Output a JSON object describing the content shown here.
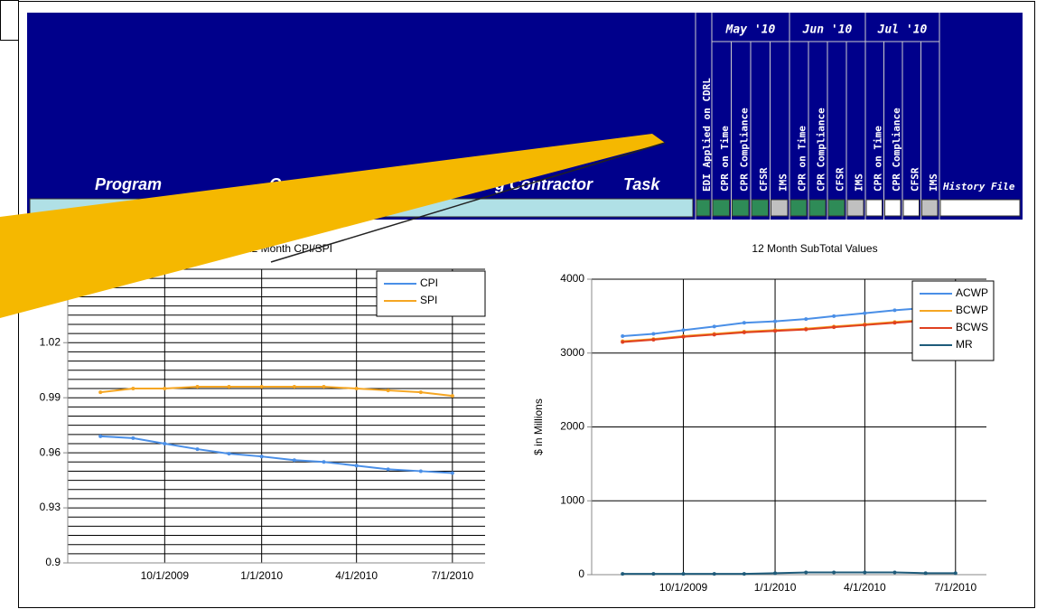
{
  "header": {
    "columns": [
      "Program",
      "Cont",
      "g Contractor",
      "Task"
    ],
    "edi": "EDI Applied on CDRL",
    "edi_color": "#2e8b57",
    "months": [
      {
        "label": "May '10",
        "items": [
          "CPR on Time",
          "CPR Compliance",
          "CFSR",
          "IMS"
        ],
        "colors": [
          "#2e8b57",
          "#2e8b57",
          "#2e8b57",
          "#c0c0c0"
        ]
      },
      {
        "label": "Jun '10",
        "items": [
          "CPR on Time",
          "CPR Compliance",
          "CFSR",
          "IMS"
        ],
        "colors": [
          "#2e8b57",
          "#2e8b57",
          "#2e8b57",
          "#c0c0c0"
        ]
      },
      {
        "label": "Jul '10",
        "items": [
          "CPR on Time",
          "CPR Compliance",
          "CFSR",
          "IMS"
        ],
        "colors": [
          "#ffffff",
          "#ffffff",
          "#ffffff",
          "#c0c0c0"
        ]
      }
    ],
    "history": "History File"
  },
  "chart_data": [
    {
      "type": "line",
      "title": "12 Month CPI/SPI",
      "x": [
        "8/1/2009",
        "9/1/2009",
        "10/1/2009",
        "11/1/2009",
        "12/1/2009",
        "1/1/2010",
        "2/1/2010",
        "3/1/2010",
        "4/1/2010",
        "5/1/2010",
        "6/1/2010",
        "7/1/2010"
      ],
      "xlim": [
        "7/1/2009",
        "8/1/2010"
      ],
      "xticks": [
        "10/1/2009",
        "1/1/2010",
        "4/1/2010",
        "7/1/2010"
      ],
      "ylim": [
        0.9,
        1.06
      ],
      "yticks": [
        0.9,
        0.93,
        0.96,
        0.99,
        1.02
      ],
      "ygrid": [
        0.9,
        0.905,
        0.91,
        0.915,
        0.92,
        0.925,
        0.93,
        0.935,
        0.94,
        0.945,
        0.95,
        0.955,
        0.96,
        0.965,
        0.97,
        0.975,
        0.98,
        0.985,
        0.99,
        0.995,
        1.0,
        1.005,
        1.01,
        1.015,
        1.02,
        1.025,
        1.03,
        1.035,
        1.04,
        1.045,
        1.05,
        1.055,
        1.06
      ],
      "grid": true,
      "legend": "upper right",
      "series": [
        {
          "name": "CPI",
          "color": "#4a8fe7",
          "values": [
            0.969,
            0.968,
            0.965,
            0.962,
            0.9595,
            0.958,
            0.956,
            0.955,
            0.953,
            0.951,
            0.95,
            0.949
          ]
        },
        {
          "name": "SPI",
          "color": "#f5a623",
          "values": [
            0.993,
            0.995,
            0.995,
            0.996,
            0.996,
            0.996,
            0.996,
            0.996,
            0.995,
            0.994,
            0.993,
            0.991
          ]
        }
      ]
    },
    {
      "type": "line",
      "title": "12 Month SubTotal Values",
      "ylabel": "$ in Millions",
      "x": [
        "8/1/2009",
        "9/1/2009",
        "10/1/2009",
        "11/1/2009",
        "12/1/2009",
        "1/1/2010",
        "2/1/2010",
        "3/1/2010",
        "4/1/2010",
        "5/1/2010",
        "6/1/2010",
        "7/1/2010"
      ],
      "xlim": [
        "7/1/2009",
        "8/1/2010"
      ],
      "xticks": [
        "10/1/2009",
        "1/1/2010",
        "4/1/2010",
        "7/1/2010"
      ],
      "ylim": [
        0,
        4000
      ],
      "yticks": [
        0,
        1000,
        2000,
        3000,
        4000
      ],
      "grid": true,
      "legend": "upper right",
      "series": [
        {
          "name": "ACWP",
          "color": "#4a8fe7",
          "values": [
            3230,
            3260,
            3310,
            3360,
            3410,
            3430,
            3460,
            3500,
            3540,
            3580,
            3610,
            3650
          ]
        },
        {
          "name": "BCWP",
          "color": "#f5a623",
          "values": [
            3160,
            3190,
            3230,
            3260,
            3290,
            3310,
            3330,
            3360,
            3390,
            3420,
            3450,
            3480
          ]
        },
        {
          "name": "BCWS",
          "color": "#e04020",
          "values": [
            3150,
            3180,
            3220,
            3250,
            3280,
            3300,
            3320,
            3350,
            3380,
            3410,
            3440,
            3470
          ]
        },
        {
          "name": "MR",
          "color": "#1e5b7a",
          "values": [
            10,
            10,
            10,
            10,
            10,
            20,
            30,
            30,
            30,
            30,
            20,
            20
          ]
        }
      ]
    }
  ]
}
